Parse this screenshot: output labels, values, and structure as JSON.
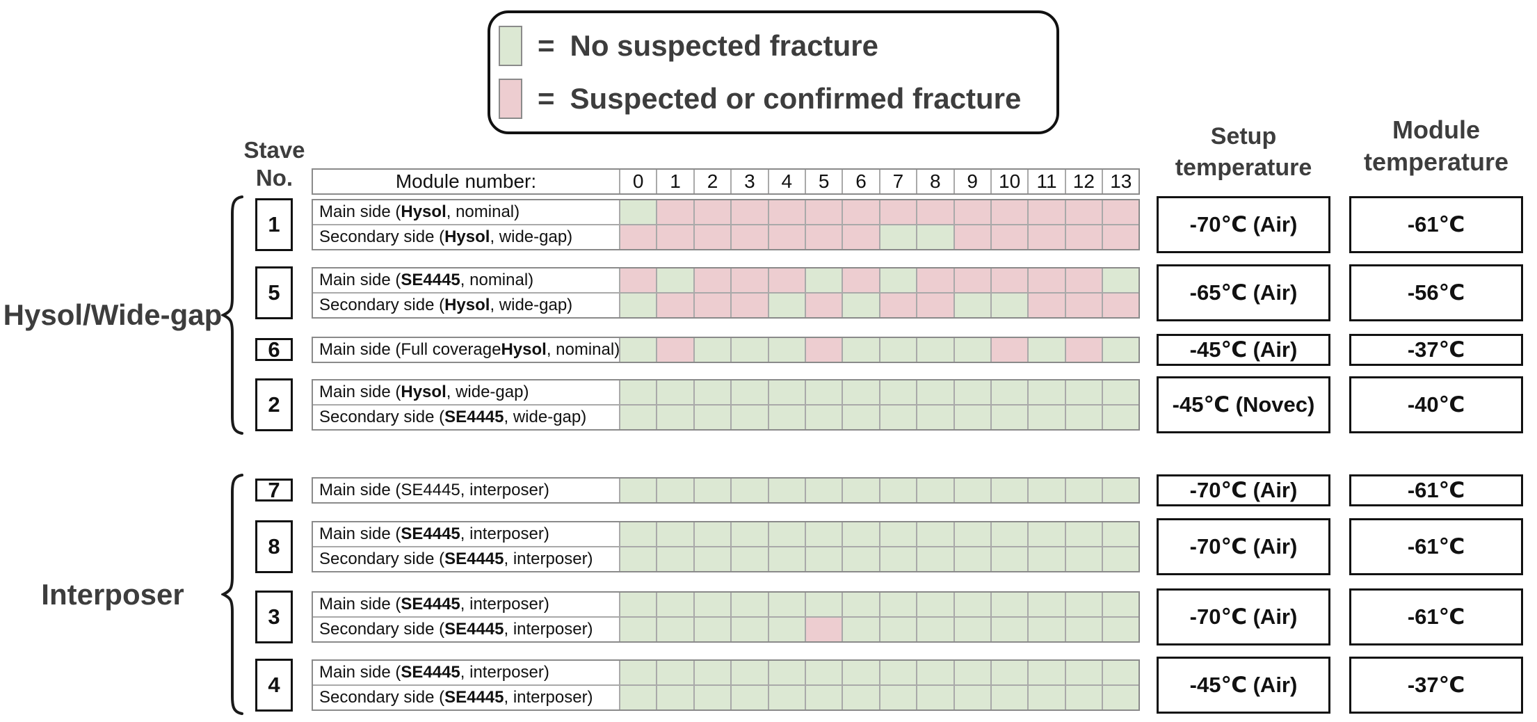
{
  "figure": {
    "legend": {
      "items": [
        {
          "key": "no_fracture",
          "color": "#dce8d3",
          "eq": "=",
          "label": "No suspected fracture"
        },
        {
          "key": "fracture",
          "color": "#edcdd0",
          "eq": "=",
          "label": "Suspected or confirmed fracture"
        }
      ]
    },
    "stave_no_header": {
      "line1": "Stave",
      "line2": "No."
    },
    "setup_temp_header": {
      "line1": "Setup",
      "line2": "temperature"
    },
    "module_temp_header": {
      "line1": "Module",
      "line2": "temperature"
    },
    "module_number_label": "Module number:",
    "module_numbers": [
      "0",
      "1",
      "2",
      "3",
      "4",
      "5",
      "6",
      "7",
      "8",
      "9",
      "10",
      "11",
      "12",
      "13"
    ]
  },
  "chart_data": {
    "type": "heatmap",
    "columns": [
      0,
      1,
      2,
      3,
      4,
      5,
      6,
      7,
      8,
      9,
      10,
      11,
      12,
      13
    ],
    "cell_states": {
      "g": "No suspected fracture",
      "p": "Suspected or confirmed fracture"
    },
    "colors": {
      "g": "#dce8d3",
      "p": "#edcdd0"
    },
    "groups": [
      {
        "label": "Hysol/Wide-gap",
        "staves": [
          {
            "no": "1",
            "setup_temperature": "-70℃ (Air)",
            "module_temperature": "-61℃",
            "rows": [
              {
                "label": [
                  {
                    "t": "Main side (",
                    "b": false
                  },
                  {
                    "t": "Hysol",
                    "b": true
                  },
                  {
                    "t": ", nominal)",
                    "b": false
                  }
                ],
                "cells": "gppppppppppppp"
              },
              {
                "label": [
                  {
                    "t": "Secondary side (",
                    "b": false
                  },
                  {
                    "t": "Hysol",
                    "b": true
                  },
                  {
                    "t": ", wide-gap)",
                    "b": false
                  }
                ],
                "cells": "pppppppggppppp"
              }
            ]
          },
          {
            "no": "5",
            "setup_temperature": "-65℃ (Air)",
            "module_temperature": "-56℃",
            "rows": [
              {
                "label": [
                  {
                    "t": "Main side (",
                    "b": false
                  },
                  {
                    "t": "SE4445",
                    "b": true
                  },
                  {
                    "t": ", nominal)",
                    "b": false
                  }
                ],
                "cells": "pgpppgpgpppppg"
              },
              {
                "label": [
                  {
                    "t": "Secondary side (",
                    "b": false
                  },
                  {
                    "t": "Hysol",
                    "b": true
                  },
                  {
                    "t": ", wide-gap)",
                    "b": false
                  }
                ],
                "cells": "gpppgpgppggppp"
              }
            ]
          },
          {
            "no": "6",
            "setup_temperature": "-45℃ (Air)",
            "module_temperature": "-37℃",
            "rows": [
              {
                "label": [
                  {
                    "t": "Main side (Full coverage ",
                    "b": false
                  },
                  {
                    "t": "Hysol",
                    "b": true
                  },
                  {
                    "t": ", nominal)",
                    "b": false
                  }
                ],
                "cells": "gpgggpggggpgpg"
              }
            ]
          },
          {
            "no": "2",
            "setup_temperature": "-45℃ (Novec)",
            "module_temperature": "-40℃",
            "rows": [
              {
                "label": [
                  {
                    "t": "Main side (",
                    "b": false
                  },
                  {
                    "t": "Hysol",
                    "b": true
                  },
                  {
                    "t": ", wide-gap)",
                    "b": false
                  }
                ],
                "cells": "gggggggggggggg"
              },
              {
                "label": [
                  {
                    "t": "Secondary side (",
                    "b": false
                  },
                  {
                    "t": "SE4445",
                    "b": true
                  },
                  {
                    "t": ", wide-gap)",
                    "b": false
                  }
                ],
                "cells": "gggggggggggggg"
              }
            ]
          }
        ]
      },
      {
        "label": "Interposer",
        "staves": [
          {
            "no": "7",
            "setup_temperature": "-70℃ (Air)",
            "module_temperature": "-61℃",
            "rows": [
              {
                "label": [
                  {
                    "t": "Main side (SE4445, interposer)",
                    "b": false
                  }
                ],
                "cells": "gggggggggggggg"
              }
            ]
          },
          {
            "no": "8",
            "setup_temperature": "-70℃ (Air)",
            "module_temperature": "-61℃",
            "rows": [
              {
                "label": [
                  {
                    "t": "Main side (",
                    "b": false
                  },
                  {
                    "t": "SE4445",
                    "b": true
                  },
                  {
                    "t": ", interposer)",
                    "b": false
                  }
                ],
                "cells": "gggggggggggggg"
              },
              {
                "label": [
                  {
                    "t": "Secondary side (",
                    "b": false
                  },
                  {
                    "t": "SE4445",
                    "b": true
                  },
                  {
                    "t": ", interposer)",
                    "b": false
                  }
                ],
                "cells": "gggggggggggggg"
              }
            ]
          },
          {
            "no": "3",
            "setup_temperature": "-70℃ (Air)",
            "module_temperature": "-61℃",
            "rows": [
              {
                "label": [
                  {
                    "t": "Main side (",
                    "b": false
                  },
                  {
                    "t": "SE4445",
                    "b": true
                  },
                  {
                    "t": ", interposer)",
                    "b": false
                  }
                ],
                "cells": "gggggggggggggg"
              },
              {
                "label": [
                  {
                    "t": "Secondary side (",
                    "b": false
                  },
                  {
                    "t": "SE4445",
                    "b": true
                  },
                  {
                    "t": ", interposer)",
                    "b": false
                  }
                ],
                "cells": "gggggpgggggggg"
              }
            ]
          },
          {
            "no": "4",
            "setup_temperature": "-45℃ (Air)",
            "module_temperature": "-37℃",
            "rows": [
              {
                "label": [
                  {
                    "t": "Main side (",
                    "b": false
                  },
                  {
                    "t": "SE4445",
                    "b": true
                  },
                  {
                    "t": ", interposer)",
                    "b": false
                  }
                ],
                "cells": "gggggggggggggg"
              },
              {
                "label": [
                  {
                    "t": "Secondary side (",
                    "b": false
                  },
                  {
                    "t": "SE4445",
                    "b": true
                  },
                  {
                    "t": ", interposer)",
                    "b": false
                  }
                ],
                "cells": "gggggggggggggg"
              }
            ]
          }
        ]
      }
    ]
  }
}
